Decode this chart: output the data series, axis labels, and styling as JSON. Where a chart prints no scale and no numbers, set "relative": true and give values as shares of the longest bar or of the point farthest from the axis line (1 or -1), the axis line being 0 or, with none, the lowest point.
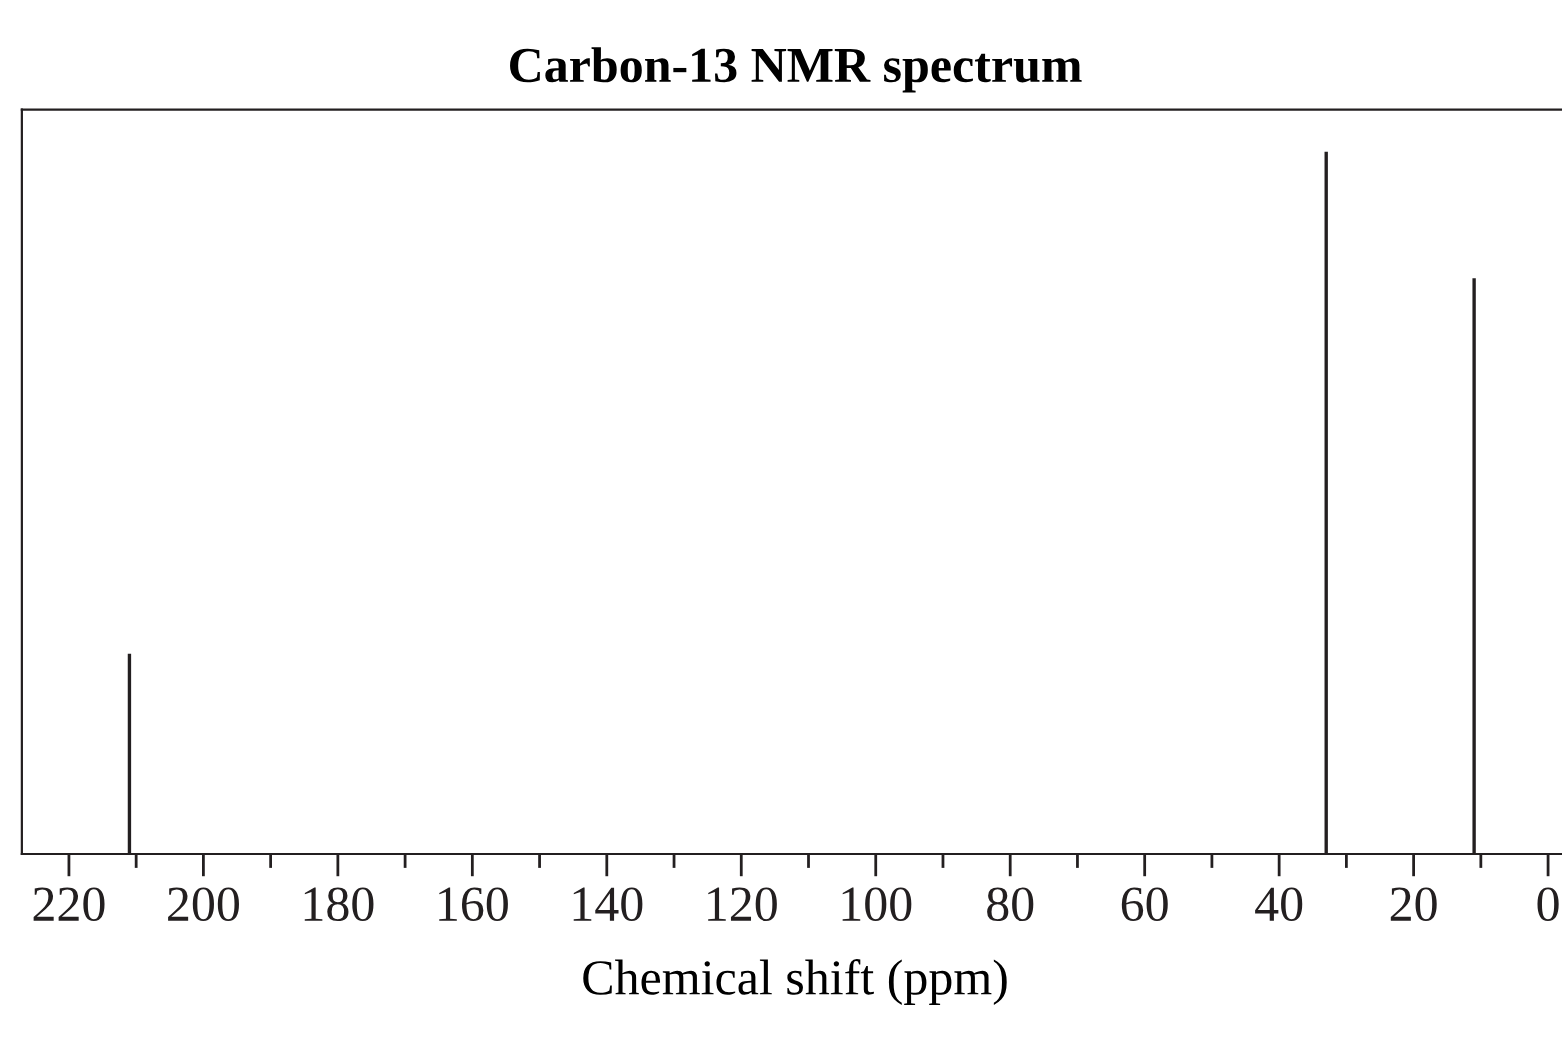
{
  "chart_data": {
    "type": "bar",
    "title": "Carbon-13 NMR spectrum",
    "xlabel": "Chemical shift (ppm)",
    "x": [
      211,
      33,
      11
    ],
    "values": [
      0.285,
      1,
      0.82
    ],
    "color": "#231f20",
    "relative": true,
    "xlim": [
      227,
      -3
    ],
    "xticks": [
      220,
      {
        "value": 210,
        "label": null
      },
      200,
      {
        "value": 190,
        "label": null
      },
      180,
      {
        "value": 170,
        "label": null
      },
      160,
      {
        "value": 150,
        "label": null
      },
      140,
      {
        "value": 130,
        "label": null
      },
      120,
      {
        "value": 110,
        "label": null
      },
      100,
      {
        "value": 90,
        "label": null
      },
      80,
      {
        "value": 70,
        "label": null
      },
      60,
      {
        "value": 50,
        "label": null
      },
      40,
      {
        "value": 30,
        "label": null
      },
      20,
      {
        "value": 10,
        "label": null
      },
      0
    ],
    "grid": false
  }
}
